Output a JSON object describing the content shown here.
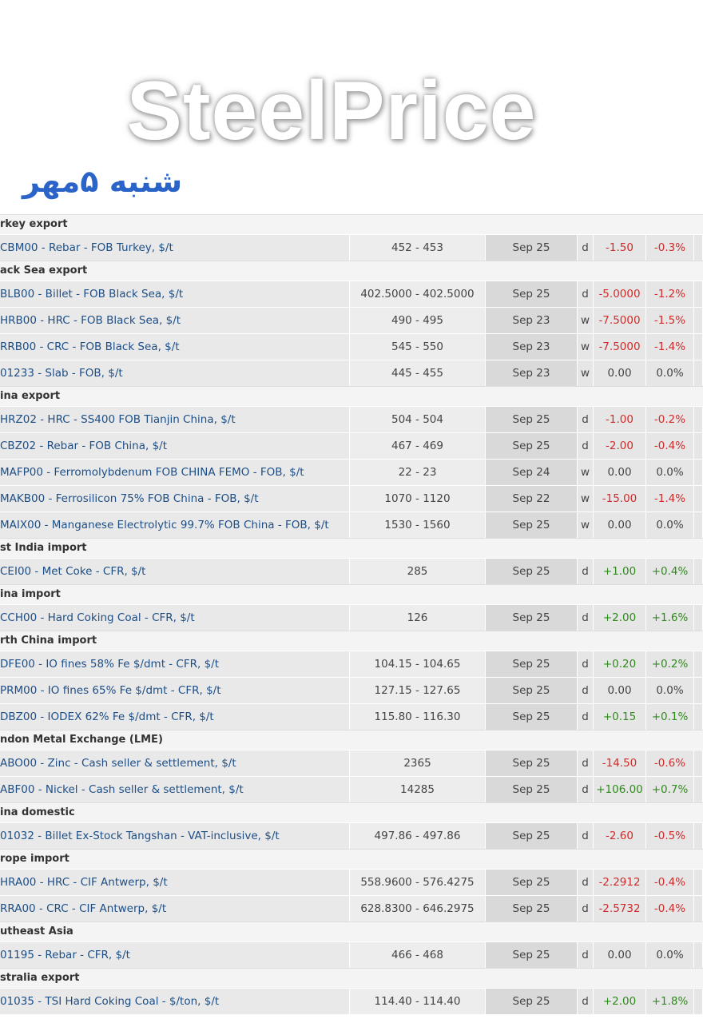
{
  "header": {
    "title": "SteelPrice",
    "subtitle": "شنبه ۵مهر"
  },
  "sections": [
    {
      "name": "rkey export",
      "rows": [
        [
          "CBM00 - Rebar - FOB Turkey, $/t",
          "452 - 453",
          "Sep 25",
          "d",
          "-1.50",
          "-0.3%"
        ]
      ]
    },
    {
      "name": "ack Sea export",
      "rows": [
        [
          "BLB00 - Billet - FOB Black Sea, $/t",
          "402.5000 - 402.5000",
          "Sep 25",
          "d",
          "-5.0000",
          "-1.2%"
        ],
        [
          "HRB00 - HRC - FOB Black Sea, $/t",
          "490 - 495",
          "Sep 23",
          "w",
          "-7.5000",
          "-1.5%"
        ],
        [
          "RRB00 - CRC - FOB Black Sea, $/t",
          "545 - 550",
          "Sep 23",
          "w",
          "-7.5000",
          "-1.4%"
        ],
        [
          "01233 - Slab - FOB, $/t",
          "445 - 455",
          "Sep 23",
          "w",
          "0.00",
          "0.0%"
        ]
      ]
    },
    {
      "name": "ina export",
      "rows": [
        [
          "HRZ02 - HRC - SS400 FOB Tianjin China, $/t",
          "504 - 504",
          "Sep 25",
          "d",
          "-1.00",
          "-0.2%"
        ],
        [
          "CBZ02 - Rebar - FOB China, $/t",
          "467 - 469",
          "Sep 25",
          "d",
          "-2.00",
          "-0.4%"
        ],
        [
          "MAFP00 - Ferromolybdenum FOB CHINA FEMO - FOB, $/t",
          "22 - 23",
          "Sep 24",
          "w",
          "0.00",
          "0.0%"
        ],
        [
          "MAKB00 - Ferrosilicon 75% FOB China - FOB, $/t",
          "1070 - 1120",
          "Sep 22",
          "w",
          "-15.00",
          "-1.4%"
        ],
        [
          "MAIX00 - Manganese Electrolytic 99.7% FOB China - FOB, $/t",
          "1530 - 1560",
          "Sep 25",
          "w",
          "0.00",
          "0.0%"
        ]
      ]
    },
    {
      "name": "st India import",
      "rows": [
        [
          "CEI00 - Met Coke - CFR, $/t",
          "285",
          "Sep 25",
          "d",
          "+1.00",
          "+0.4%"
        ]
      ]
    },
    {
      "name": "ina import",
      "rows": [
        [
          "CCH00 - Hard Coking Coal - CFR, $/t",
          "126",
          "Sep 25",
          "d",
          "+2.00",
          "+1.6%"
        ]
      ]
    },
    {
      "name": "rth China import",
      "rows": [
        [
          "DFE00 - IO fines 58% Fe $/dmt - CFR, $/t",
          "104.15 - 104.65",
          "Sep 25",
          "d",
          "+0.20",
          "+0.2%"
        ],
        [
          "PRM00 - IO fines 65% Fe $/dmt - CFR, $/t",
          "127.15 - 127.65",
          "Sep 25",
          "d",
          "0.00",
          "0.0%"
        ],
        [
          "DBZ00 - IODEX 62% Fe $/dmt - CFR, $/t",
          "115.80 - 116.30",
          "Sep 25",
          "d",
          "+0.15",
          "+0.1%"
        ]
      ]
    },
    {
      "name": "ndon Metal Exchange (LME)",
      "rows": [
        [
          "ABO00 - Zinc - Cash seller & settlement, $/t",
          "2365",
          "Sep 25",
          "d",
          "-14.50",
          "-0.6%"
        ],
        [
          "ABF00 - Nickel - Cash seller & settlement, $/t",
          "14285",
          "Sep 25",
          "d",
          "+106.00",
          "+0.7%"
        ]
      ]
    },
    {
      "name": "ina domestic",
      "rows": [
        [
          "01032 - Billet Ex-Stock Tangshan - VAT-inclusive, $/t",
          "497.86 - 497.86",
          "Sep 25",
          "d",
          "-2.60",
          "-0.5%"
        ]
      ]
    },
    {
      "name": "rope import",
      "rows": [
        [
          "HRA00 - HRC - CIF Antwerp, $/t",
          "558.9600 - 576.4275",
          "Sep 25",
          "d",
          "-2.2912",
          "-0.4%"
        ],
        [
          "RRA00 - CRC - CIF Antwerp, $/t",
          "628.8300 - 646.2975",
          "Sep 25",
          "d",
          "-2.5732",
          "-0.4%"
        ]
      ]
    },
    {
      "name": "utheast Asia",
      "rows": [
        [
          "01195 - Rebar - CFR, $/t",
          "466 - 468",
          "Sep 25",
          "d",
          "0.00",
          "0.0%"
        ]
      ]
    },
    {
      "name": "stralia export",
      "rows": [
        [
          "01035 - TSI Hard Coking Coal - $/ton, $/t",
          "114.40 - 114.40",
          "Sep 25",
          "d",
          "+2.00",
          "+1.8%"
        ]
      ]
    }
  ]
}
